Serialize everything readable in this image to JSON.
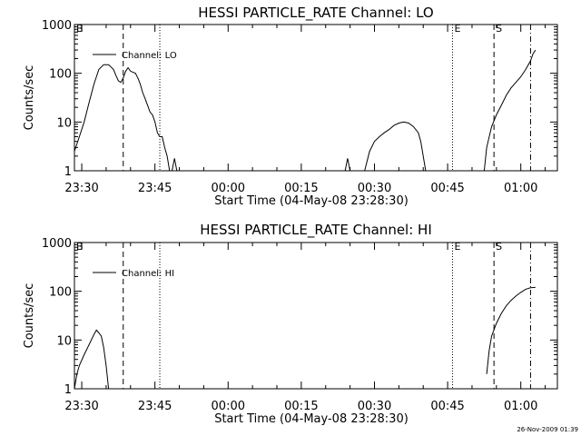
{
  "footer": {
    "date_stamp": "26-Nov-2009 01:39"
  },
  "chart_data": [
    {
      "type": "line",
      "title": "HESSI PARTICLE_RATE Channel: LO",
      "xlabel": "Start Time (04-May-08 23:28:30)",
      "ylabel": "Counts/sec",
      "yscale": "log",
      "ylim": [
        1,
        1000
      ],
      "xlim": [
        "23:28:30",
        "01:07:30"
      ],
      "x_ticks": [
        "23:30",
        "23:45",
        "00:00",
        "00:15",
        "00:30",
        "00:45",
        "01:00"
      ],
      "y_ticks": [
        "1",
        "10",
        "100",
        "1000"
      ],
      "legend": {
        "entries": [
          "Channel: LO"
        ],
        "position": "top-left"
      },
      "markers": [
        {
          "label": "B",
          "time": "23:28:30",
          "style": "solid"
        },
        {
          "label": "",
          "time": "23:38:30",
          "style": "dashed"
        },
        {
          "label": "",
          "time": "23:46:00",
          "style": "dotted"
        },
        {
          "label": "E",
          "time": "00:46:00",
          "style": "dotted"
        },
        {
          "label": "S",
          "time": "00:54:30",
          "style": "dashed"
        },
        {
          "label": "",
          "time": "01:02:00",
          "style": "dashdot"
        }
      ],
      "series": [
        {
          "name": "Channel: LO",
          "segments": [
            [
              [
                "23:28:30",
                2.5
              ],
              [
                "23:29:30",
                5
              ],
              [
                "23:30:30",
                10
              ],
              [
                "23:31:30",
                25
              ],
              [
                "23:32:30",
                60
              ],
              [
                "23:33:30",
                120
              ],
              [
                "23:34:30",
                150
              ],
              [
                "23:35:30",
                150
              ],
              [
                "23:36:30",
                120
              ],
              [
                "23:37:00",
                90
              ],
              [
                "23:37:30",
                70
              ],
              [
                "23:38:00",
                65
              ],
              [
                "23:38:30",
                80
              ],
              [
                "23:39:00",
                110
              ],
              [
                "23:39:30",
                130
              ],
              [
                "23:40:00",
                110
              ],
              [
                "23:41:00",
                100
              ],
              [
                "23:41:30",
                80
              ],
              [
                "23:42:00",
                60
              ],
              [
                "23:42:30",
                40
              ],
              [
                "23:43:00",
                30
              ],
              [
                "23:44:00",
                16
              ],
              [
                "23:44:30",
                14
              ],
              [
                "23:45:00",
                10
              ],
              [
                "23:45:30",
                6
              ],
              [
                "23:46:00",
                5
              ],
              [
                "23:46:30",
                5
              ],
              [
                "23:47:00",
                3
              ],
              [
                "23:47:30",
                2
              ],
              [
                "23:48:00",
                1
              ]
            ],
            [
              [
                "23:48:30",
                1
              ],
              [
                "23:49:00",
                1.8
              ],
              [
                "23:49:30",
                1
              ]
            ],
            [
              [
                "00:24:00",
                1
              ],
              [
                "00:24:30",
                1.8
              ],
              [
                "00:25:00",
                1
              ]
            ],
            [
              [
                "00:28:00",
                1
              ],
              [
                "00:29:00",
                2.5
              ],
              [
                "00:30:00",
                4
              ],
              [
                "00:31:00",
                5
              ],
              [
                "00:32:00",
                6
              ],
              [
                "00:33:00",
                7
              ],
              [
                "00:34:00",
                8.5
              ],
              [
                "00:35:00",
                9.5
              ],
              [
                "00:36:00",
                10
              ],
              [
                "00:37:00",
                9.5
              ],
              [
                "00:38:00",
                8
              ],
              [
                "00:39:00",
                6
              ],
              [
                "00:39:30",
                4
              ],
              [
                "00:40:00",
                2
              ],
              [
                "00:40:30",
                1
              ]
            ],
            [
              [
                "00:52:30",
                1
              ],
              [
                "00:53:00",
                3
              ],
              [
                "00:54:00",
                8
              ],
              [
                "00:55:00",
                14
              ],
              [
                "00:56:00",
                22
              ],
              [
                "00:57:00",
                35
              ],
              [
                "00:58:00",
                50
              ],
              [
                "00:59:00",
                65
              ],
              [
                "01:00:00",
                85
              ],
              [
                "01:01:00",
                120
              ],
              [
                "01:02:00",
                180
              ],
              [
                "01:02:30",
                250
              ],
              [
                "01:03:00",
                300
              ]
            ]
          ]
        }
      ]
    },
    {
      "type": "line",
      "title": "HESSI PARTICLE_RATE Channel: HI",
      "xlabel": "Start Time (04-May-08 23:28:30)",
      "ylabel": "Counts/sec",
      "yscale": "log",
      "ylim": [
        1,
        1000
      ],
      "xlim": [
        "23:28:30",
        "01:07:30"
      ],
      "x_ticks": [
        "23:30",
        "23:45",
        "00:00",
        "00:15",
        "00:30",
        "00:45",
        "01:00"
      ],
      "y_ticks": [
        "1",
        "10",
        "100",
        "1000"
      ],
      "legend": {
        "entries": [
          "Channel: HI"
        ],
        "position": "top-left"
      },
      "markers": [
        {
          "label": "B",
          "time": "23:28:30",
          "style": "solid"
        },
        {
          "label": "",
          "time": "23:38:30",
          "style": "dashed"
        },
        {
          "label": "",
          "time": "23:46:00",
          "style": "dotted"
        },
        {
          "label": "E",
          "time": "00:46:00",
          "style": "dotted"
        },
        {
          "label": "S",
          "time": "00:54:30",
          "style": "dashed"
        },
        {
          "label": "",
          "time": "01:02:00",
          "style": "dashdot"
        }
      ],
      "series": [
        {
          "name": "Channel: HI",
          "segments": [
            [
              [
                "23:28:30",
                1
              ],
              [
                "23:29:00",
                2
              ],
              [
                "23:29:30",
                3
              ],
              [
                "23:30:30",
                5
              ],
              [
                "23:31:30",
                8
              ],
              [
                "23:32:30",
                13
              ],
              [
                "23:33:00",
                16
              ],
              [
                "23:33:30",
                14
              ],
              [
                "23:34:00",
                12
              ],
              [
                "23:34:30",
                7
              ],
              [
                "23:35:00",
                3
              ],
              [
                "23:35:30",
                1
              ]
            ],
            [
              [
                "00:53:00",
                2
              ],
              [
                "00:53:30",
                6
              ],
              [
                "00:54:00",
                12
              ],
              [
                "00:55:00",
                22
              ],
              [
                "00:56:00",
                35
              ],
              [
                "00:57:00",
                50
              ],
              [
                "00:58:00",
                65
              ],
              [
                "00:59:00",
                80
              ],
              [
                "01:00:00",
                95
              ],
              [
                "01:01:00",
                110
              ],
              [
                "01:02:00",
                118
              ],
              [
                "01:03:00",
                120
              ]
            ]
          ]
        }
      ]
    }
  ]
}
